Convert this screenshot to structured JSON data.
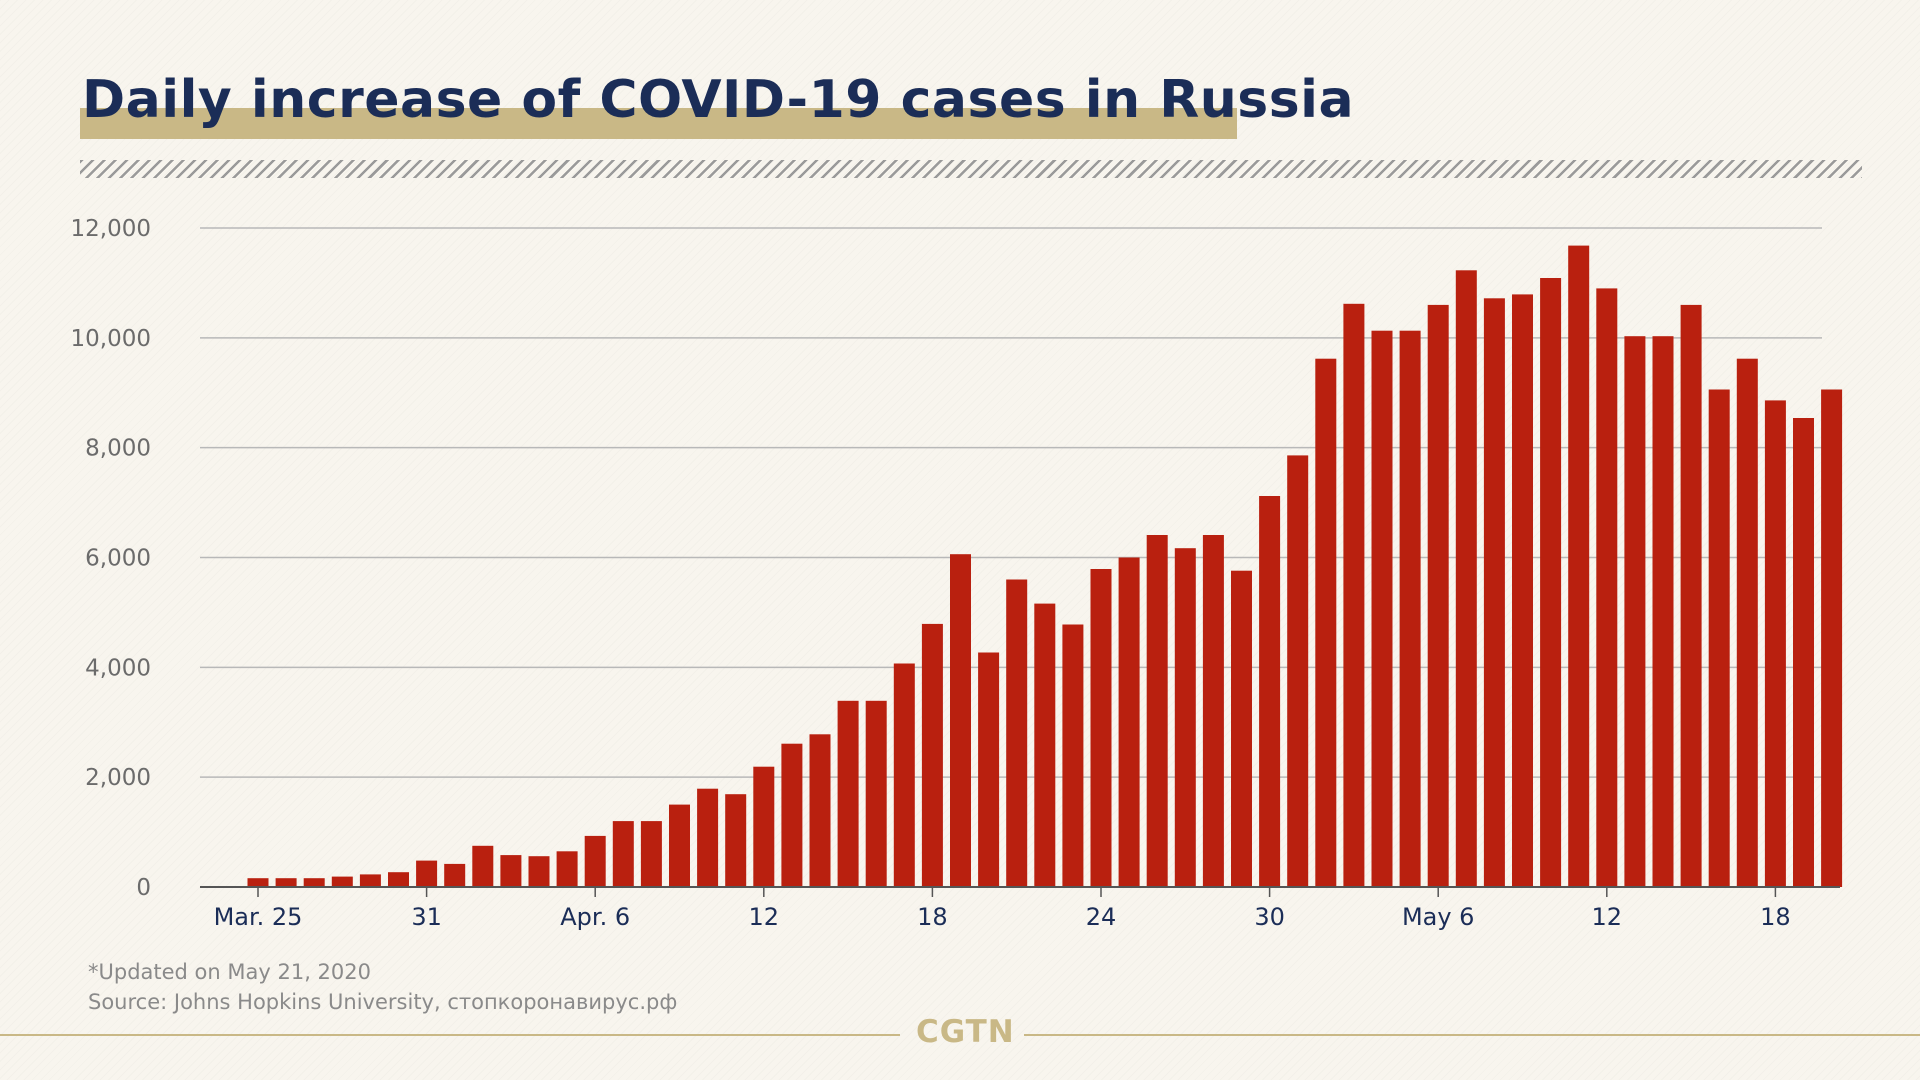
{
  "title": "Daily increase of COVID-19 cases in Russia",
  "footnote": {
    "updated": "*Updated on May 21, 2020",
    "source": "Source: Johns Hopkins University, стопкоронавирус.рф"
  },
  "logo": "CGTN",
  "colors": {
    "bar": "#b9200f",
    "title": "#1b2d57",
    "accent": "#c9b886",
    "grid": "#b8b8b8"
  },
  "chart_data": {
    "type": "bar",
    "title": "Daily increase of COVID-19 cases in Russia",
    "xlabel": "",
    "ylabel": "",
    "ylim": [
      0,
      12000
    ],
    "yticks": [
      0,
      2000,
      4000,
      6000,
      8000,
      10000,
      12000
    ],
    "ytick_labels": [
      "0",
      "2,000",
      "4,000",
      "6,000",
      "8,000",
      "10,000",
      "12,000"
    ],
    "grid": true,
    "categories": [
      "Mar. 25",
      "",
      "",
      "",
      "",
      "",
      "31",
      "",
      "",
      "",
      "",
      "",
      "Apr. 6",
      "",
      "",
      "",
      "",
      "",
      "12",
      "",
      "",
      "",
      "",
      "",
      "18",
      "",
      "",
      "",
      "",
      "",
      "24",
      "",
      "",
      "",
      "",
      "",
      "30",
      "",
      "",
      "",
      "",
      "",
      "May 6",
      "",
      "",
      "",
      "",
      "",
      "12",
      "",
      "",
      "",
      "",
      "",
      "18",
      "",
      ""
    ],
    "values": [
      160,
      160,
      160,
      190,
      230,
      270,
      480,
      420,
      750,
      580,
      560,
      650,
      930,
      1200,
      1200,
      1500,
      1790,
      1690,
      2190,
      2610,
      2780,
      3390,
      3390,
      4070,
      4790,
      6060,
      4270,
      5600,
      5160,
      4780,
      5790,
      6000,
      6410,
      6170,
      6410,
      5760,
      7120,
      7860,
      9620,
      10620,
      10130,
      10130,
      10600,
      11230,
      10720,
      10790,
      11090,
      11680,
      10900,
      10030,
      10030,
      10600,
      9060,
      9620,
      8860,
      8540,
      9060
    ]
  }
}
